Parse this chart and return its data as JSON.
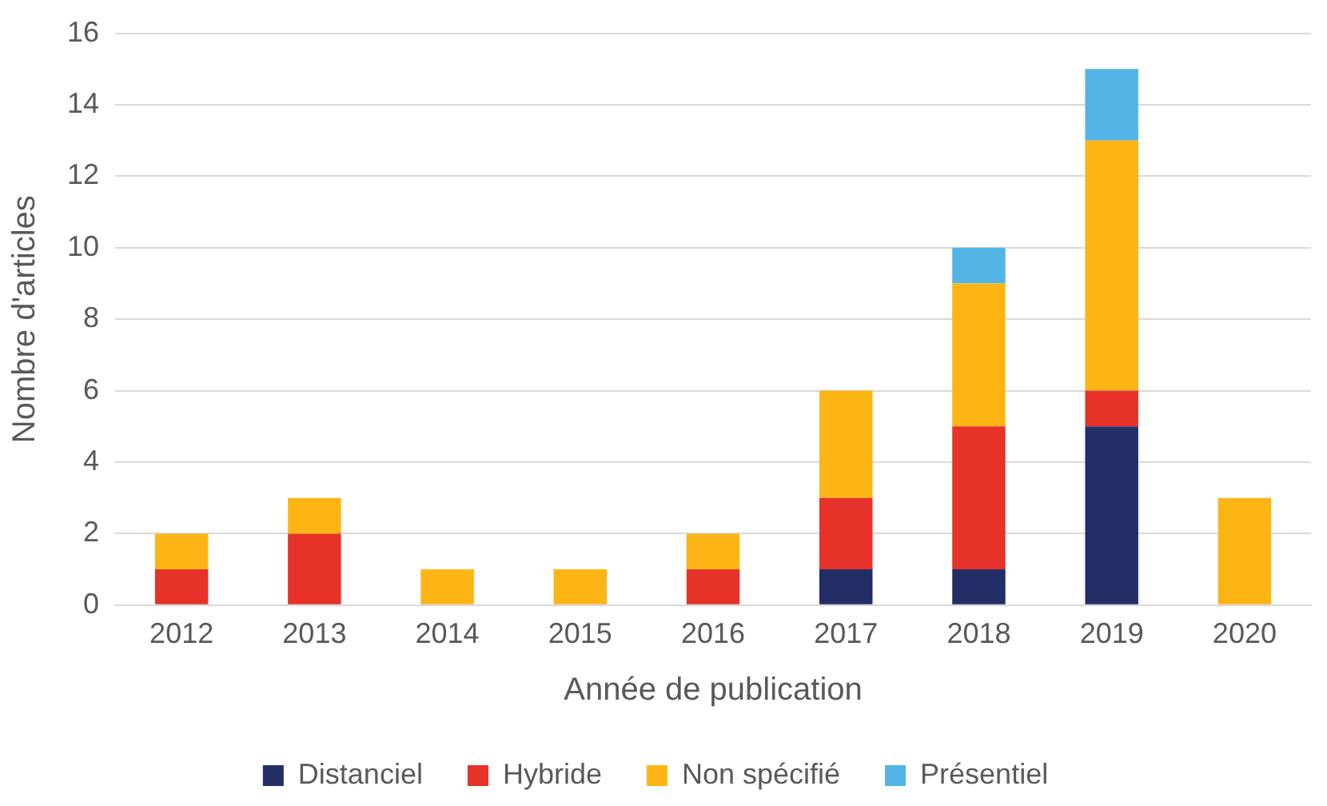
{
  "chart_data": {
    "type": "bar",
    "stacked": true,
    "xlabel": "Année de publication",
    "ylabel": "Nombre d'articles",
    "categories": [
      "2012",
      "2013",
      "2014",
      "2015",
      "2016",
      "2017",
      "2018",
      "2019",
      "2020"
    ],
    "series": [
      {
        "name": "Distanciel",
        "color": "#242e66",
        "values": [
          0,
          0,
          0,
          0,
          0,
          1,
          1,
          5,
          0
        ]
      },
      {
        "name": "Hybride",
        "color": "#e63229",
        "values": [
          1,
          2,
          0,
          0,
          1,
          2,
          4,
          1,
          0
        ]
      },
      {
        "name": "Non spécifié",
        "color": "#fdb515",
        "values": [
          1,
          1,
          1,
          1,
          1,
          3,
          4,
          7,
          3
        ]
      },
      {
        "name": "Présentiel",
        "color": "#52b5e6",
        "values": [
          0,
          0,
          0,
          0,
          0,
          0,
          1,
          2,
          0
        ]
      }
    ],
    "ylim": [
      0,
      16
    ],
    "yticks": [
      0,
      2,
      4,
      6,
      8,
      10,
      12,
      14,
      16
    ],
    "grid": "y",
    "legend": "bottom"
  }
}
